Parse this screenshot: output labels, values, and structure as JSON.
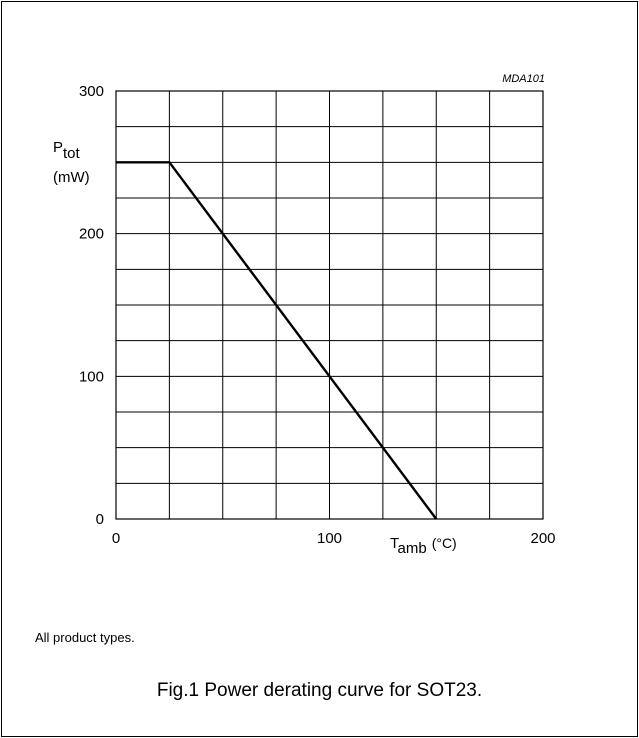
{
  "chart_data": {
    "type": "line",
    "figure_code": "MDA101",
    "ylabel": {
      "main": "P",
      "sub": "tot",
      "unit": "(mW)"
    },
    "xlabel": {
      "main": "T",
      "sub": "amb",
      "unit": "(°C)"
    },
    "xlim": [
      0,
      200
    ],
    "ylim": [
      0,
      300
    ],
    "x_ticks": [
      0,
      100,
      200
    ],
    "y_ticks": [
      0,
      100,
      200,
      300
    ],
    "x_grid_step": 25,
    "y_grid_step": 25,
    "grid": true,
    "series": [
      {
        "x": [
          0,
          25,
          150
        ],
        "y": [
          250,
          250,
          0
        ]
      }
    ]
  },
  "note": "All product types.",
  "caption": "Fig.1  Power derating curve for SOT23."
}
